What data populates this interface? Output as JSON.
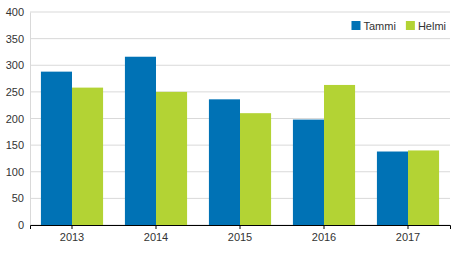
{
  "chart_data": {
    "type": "bar",
    "categories": [
      "2013",
      "2014",
      "2015",
      "2016",
      "2017"
    ],
    "series": [
      {
        "name": "Tammi",
        "color": "#0072b5",
        "values": [
          288,
          316,
          236,
          198,
          138
        ]
      },
      {
        "name": "Helmi",
        "color": "#b3d334",
        "values": [
          258,
          250,
          210,
          263,
          140
        ]
      }
    ],
    "ylim": [
      0,
      400
    ],
    "yticks": [
      0,
      50,
      100,
      150,
      200,
      250,
      300,
      350,
      400
    ],
    "grid": true,
    "legend": "top-right"
  }
}
